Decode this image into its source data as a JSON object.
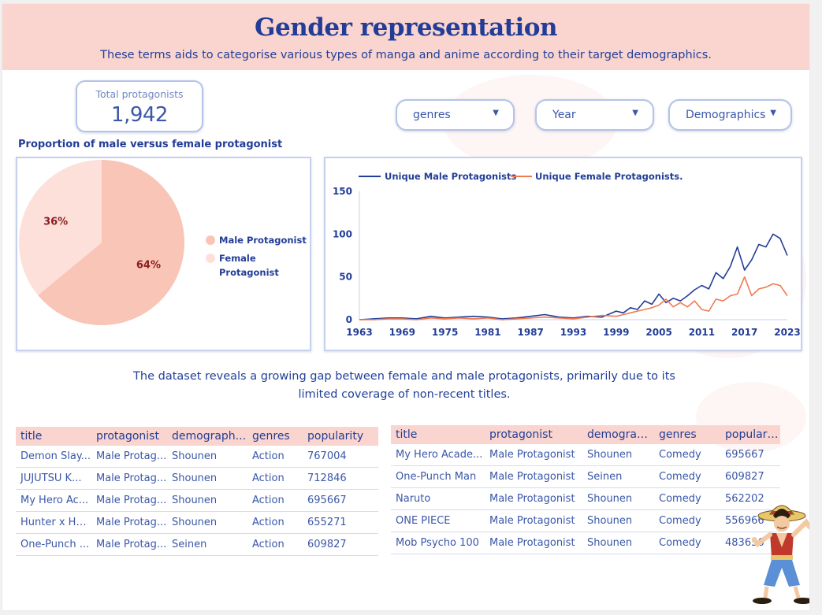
{
  "header": {
    "title": "Gender representation",
    "subtitle": "These terms aids to categorise various types of manga and anime according to their target demographics."
  },
  "scorecard": {
    "label": "Total protagonists",
    "value": "1,942"
  },
  "filters": [
    {
      "label": "genres"
    },
    {
      "label": "Year"
    },
    {
      "label": "Demographics"
    }
  ],
  "pie": {
    "title": "Proportion of male versus female protagonist",
    "legend": [
      "Male Protagonist",
      "Female Protagonist"
    ],
    "legend_female_lines": [
      "Female",
      "Protagonist"
    ]
  },
  "insight": {
    "line1": "The dataset reveals a growing gap between female and male protagonists, primarily due to its",
    "line2": "limited coverage of non-recent titles."
  },
  "chart_data": [
    {
      "type": "pie",
      "title": "Proportion of male versus female protagonist",
      "labels": [
        "Male Protagonist",
        "Female Protagonist"
      ],
      "values": [
        64,
        36
      ],
      "value_labels": [
        "64%",
        "36%"
      ],
      "colors": [
        "#f8c5b7",
        "#fde0da"
      ],
      "legend": "right"
    },
    {
      "type": "line",
      "title": "",
      "x": [
        1963,
        1965,
        1967,
        1969,
        1971,
        1973,
        1975,
        1977,
        1979,
        1981,
        1983,
        1985,
        1987,
        1989,
        1991,
        1993,
        1995,
        1997,
        1999,
        2000,
        2001,
        2002,
        2003,
        2004,
        2005,
        2006,
        2007,
        2008,
        2009,
        2010,
        2011,
        2012,
        2013,
        2014,
        2015,
        2016,
        2017,
        2018,
        2019,
        2020,
        2021,
        2022,
        2023
      ],
      "series": [
        {
          "name": "Unique Male Protagonists",
          "color": "#223d97",
          "values": [
            0,
            1,
            2,
            2,
            1,
            4,
            2,
            3,
            4,
            3,
            1,
            2,
            4,
            6,
            3,
            2,
            4,
            3,
            10,
            8,
            14,
            12,
            22,
            18,
            30,
            20,
            25,
            22,
            28,
            35,
            40,
            36,
            55,
            48,
            62,
            85,
            58,
            70,
            88,
            85,
            100,
            95,
            75
          ]
        },
        {
          "name": "Unique Female Protagonists.",
          "color": "#f07a52",
          "values": [
            0,
            0,
            1,
            1,
            0,
            2,
            1,
            2,
            1,
            2,
            0,
            1,
            2,
            3,
            2,
            1,
            3,
            5,
            4,
            6,
            8,
            10,
            12,
            14,
            17,
            24,
            15,
            20,
            15,
            22,
            12,
            10,
            24,
            22,
            28,
            30,
            50,
            28,
            36,
            38,
            42,
            40,
            28
          ]
        }
      ],
      "xticks": [
        "1963",
        "1969",
        "1975",
        "1981",
        "1987",
        "1993",
        "1999",
        "2005",
        "2011",
        "2017",
        "2023"
      ],
      "yticks": [
        "0",
        "50",
        "100",
        "150"
      ],
      "xlim": [
        1963,
        2023
      ],
      "ylim": [
        0,
        150
      ],
      "legend": "top",
      "grid": false
    }
  ],
  "table1": {
    "headers": [
      "title",
      "protagonist",
      "demograph...",
      "genres",
      "popularity"
    ],
    "rows": [
      [
        "Demon Slay...",
        "Male Protag...",
        "Shounen",
        "Action",
        "767004"
      ],
      [
        "JUJUTSU K...",
        "Male Protag...",
        "Shounen",
        "Action",
        "712846"
      ],
      [
        "My Hero Ac...",
        "Male Protag...",
        "Shounen",
        "Action",
        "695667"
      ],
      [
        "Hunter x Hu...",
        "Male Protag...",
        "Shounen",
        "Action",
        "655271"
      ],
      [
        "One-Punch ...",
        "Male Protag...",
        "Seinen",
        "Action",
        "609827"
      ]
    ]
  },
  "table2": {
    "headers": [
      "title",
      "protagonist",
      "demograph...",
      "genres",
      "popularity"
    ],
    "rows": [
      [
        "My Hero Acade...",
        "Male Protagonist",
        "Shounen",
        "Comedy",
        "695667"
      ],
      [
        "One-Punch Man",
        "Male Protagonist",
        "Seinen",
        "Comedy",
        "609827"
      ],
      [
        "Naruto",
        "Male Protagonist",
        "Shounen",
        "Comedy",
        "562202"
      ],
      [
        "ONE PIECE",
        "Male Protagonist",
        "Shounen",
        "Comedy",
        "556966"
      ],
      [
        "Mob Psycho 100",
        "Male Protagonist",
        "Shounen",
        "Comedy",
        "483656"
      ]
    ]
  },
  "colors": {
    "header_bg": "#fad4ce",
    "title": "#223d97",
    "male": "#223d97",
    "female": "#f07a52",
    "pie_male": "#f8c5b7",
    "pie_female": "#fde0da"
  },
  "icons": {
    "filter_caret": "caret-down-icon",
    "mascot": "straw-hat-character"
  }
}
